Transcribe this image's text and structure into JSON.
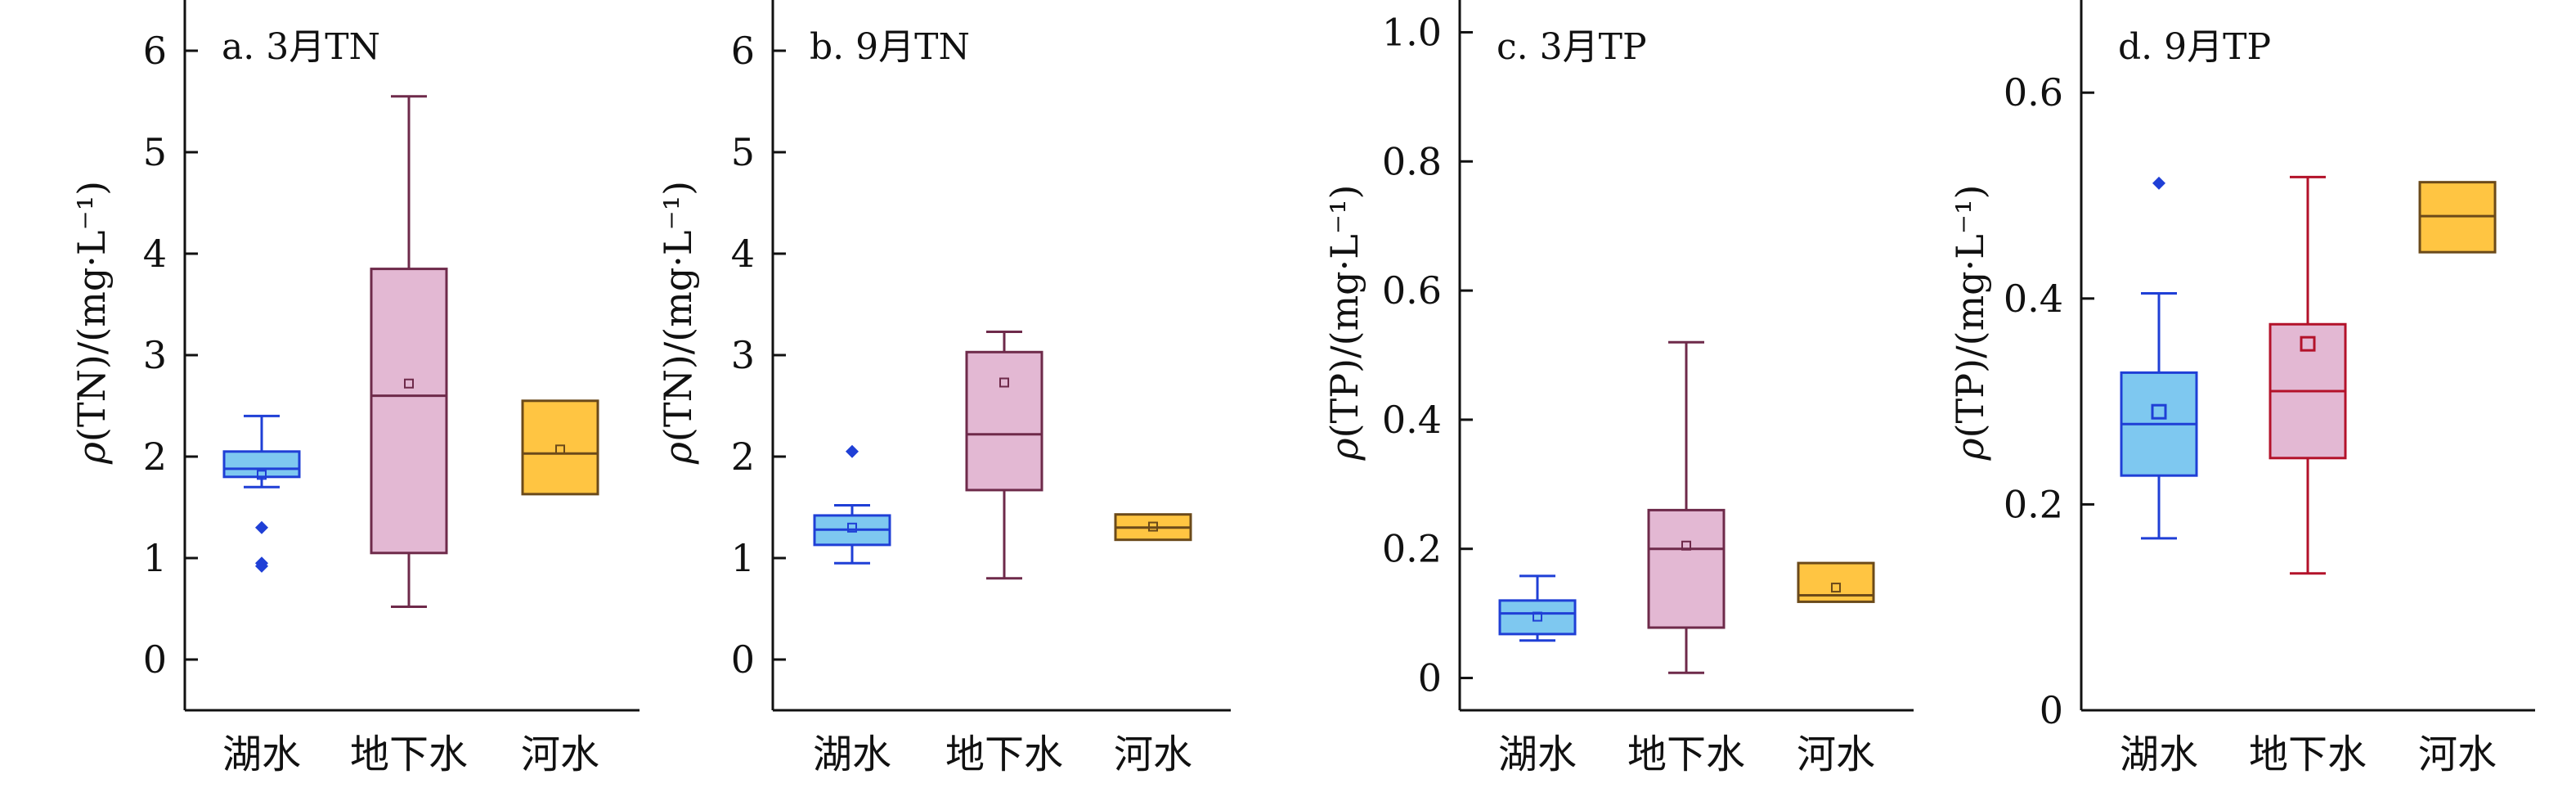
{
  "chart_data": [
    {
      "type": "box",
      "panel_title": "a. 3月TN",
      "ylabel": "ρ(TN)/(mg·L⁻¹)",
      "ylim": [
        -0.5,
        6.5
      ],
      "yticks": [
        0,
        1,
        2,
        3,
        4,
        5,
        6
      ],
      "ytick_labels": [
        "0",
        "1",
        "2",
        "3",
        "4",
        "5",
        "6"
      ],
      "categories": [
        "湖水",
        "地下水",
        "河水"
      ],
      "boxes": [
        {
          "name": "湖水",
          "whisker_low": 1.7,
          "q1": 1.8,
          "median": 1.88,
          "q3": 2.05,
          "whisker_high": 2.4,
          "mean": 1.82,
          "outliers": [
            1.3,
            0.95,
            0.92
          ],
          "fill": "#7ec8f0",
          "stroke": "#1f3fd6"
        },
        {
          "name": "地下水",
          "whisker_low": 0.52,
          "q1": 1.05,
          "median": 2.6,
          "q3": 3.85,
          "whisker_high": 5.55,
          "mean": 2.72,
          "outliers": [],
          "fill": "#e3b8d3",
          "stroke": "#6e2a4a"
        },
        {
          "name": "河水",
          "whisker_low": null,
          "q1": 1.63,
          "median": 2.03,
          "q3": 2.55,
          "whisker_high": null,
          "mean": 2.07,
          "outliers": [],
          "fill": "#ffc542",
          "stroke": "#6b4a1a"
        }
      ]
    },
    {
      "type": "box",
      "panel_title": "b. 9月TN",
      "ylabel": "ρ(TN)/(mg·L⁻¹)",
      "ylim": [
        -0.5,
        6.5
      ],
      "yticks": [
        0,
        1,
        2,
        3,
        4,
        5,
        6
      ],
      "ytick_labels": [
        "0",
        "1",
        "2",
        "3",
        "4",
        "5",
        "6"
      ],
      "categories": [
        "湖水",
        "地下水",
        "河水"
      ],
      "boxes": [
        {
          "name": "湖水",
          "whisker_low": 0.95,
          "q1": 1.13,
          "median": 1.28,
          "q3": 1.42,
          "whisker_high": 1.52,
          "mean": 1.3,
          "outliers": [
            2.05
          ],
          "fill": "#7ec8f0",
          "stroke": "#1f3fd6"
        },
        {
          "name": "地下水",
          "whisker_low": 0.8,
          "q1": 1.67,
          "median": 2.22,
          "q3": 3.03,
          "whisker_high": 3.23,
          "mean": 2.73,
          "outliers": [],
          "fill": "#e3b8d3",
          "stroke": "#6e2a4a"
        },
        {
          "name": "河水",
          "whisker_low": null,
          "q1": 1.18,
          "median": 1.3,
          "q3": 1.43,
          "whisker_high": null,
          "mean": 1.31,
          "outliers": [],
          "fill": "#ffc542",
          "stroke": "#6b4a1a"
        }
      ]
    },
    {
      "type": "box",
      "panel_title": "c. 3月TP",
      "ylabel": "ρ(TP)/(mg·L⁻¹)",
      "ylim": [
        -0.05,
        1.05
      ],
      "yticks": [
        0,
        0.2,
        0.4,
        0.6,
        0.8,
        1.0
      ],
      "ytick_labels": [
        "0",
        "0.2",
        "0.4",
        "0.6",
        "0.8",
        "1.0"
      ],
      "categories": [
        "湖水",
        "地下水",
        "河水"
      ],
      "boxes": [
        {
          "name": "湖水",
          "whisker_low": 0.058,
          "q1": 0.068,
          "median": 0.1,
          "q3": 0.12,
          "whisker_high": 0.158,
          "mean": 0.095,
          "outliers": [],
          "fill": "#7ec8f0",
          "stroke": "#1f3fd6"
        },
        {
          "name": "地下水",
          "whisker_low": 0.008,
          "q1": 0.078,
          "median": 0.2,
          "q3": 0.26,
          "whisker_high": 0.52,
          "mean": 0.205,
          "outliers": [],
          "fill": "#e3b8d3",
          "stroke": "#6e2a4a"
        },
        {
          "name": "河水",
          "whisker_low": null,
          "q1": 0.118,
          "median": 0.128,
          "q3": 0.178,
          "whisker_high": null,
          "mean": 0.14,
          "outliers": [],
          "fill": "#ffc542",
          "stroke": "#6b4a1a"
        }
      ]
    },
    {
      "type": "box",
      "panel_title": "d. 9月TP",
      "ylabel": "ρ(TP)/(mg·L⁻¹)",
      "ylim": [
        0,
        0.69
      ],
      "yticks": [
        0,
        0.2,
        0.4,
        0.6
      ],
      "ytick_labels": [
        "0",
        "0.2",
        "0.4",
        "0.6"
      ],
      "categories": [
        "湖水",
        "地下水",
        "河水"
      ],
      "boxes": [
        {
          "name": "湖水",
          "whisker_low": 0.167,
          "q1": 0.228,
          "median": 0.278,
          "q3": 0.328,
          "whisker_high": 0.405,
          "mean": 0.29,
          "outliers": [
            0.512
          ],
          "fill": "#7ec8f0",
          "stroke": "#1f3fd6"
        },
        {
          "name": "地下水",
          "whisker_low": 0.133,
          "q1": 0.245,
          "median": 0.31,
          "q3": 0.375,
          "whisker_high": 0.518,
          "mean": 0.356,
          "outliers": [],
          "fill": "#e3b8d3",
          "stroke": "#b3122a"
        },
        {
          "name": "河水",
          "whisker_low": null,
          "q1": 0.445,
          "median": 0.48,
          "q3": 0.513,
          "whisker_high": null,
          "mean": null,
          "outliers": [],
          "fill": "#ffc542",
          "stroke": "#6b4a1a"
        }
      ]
    }
  ]
}
